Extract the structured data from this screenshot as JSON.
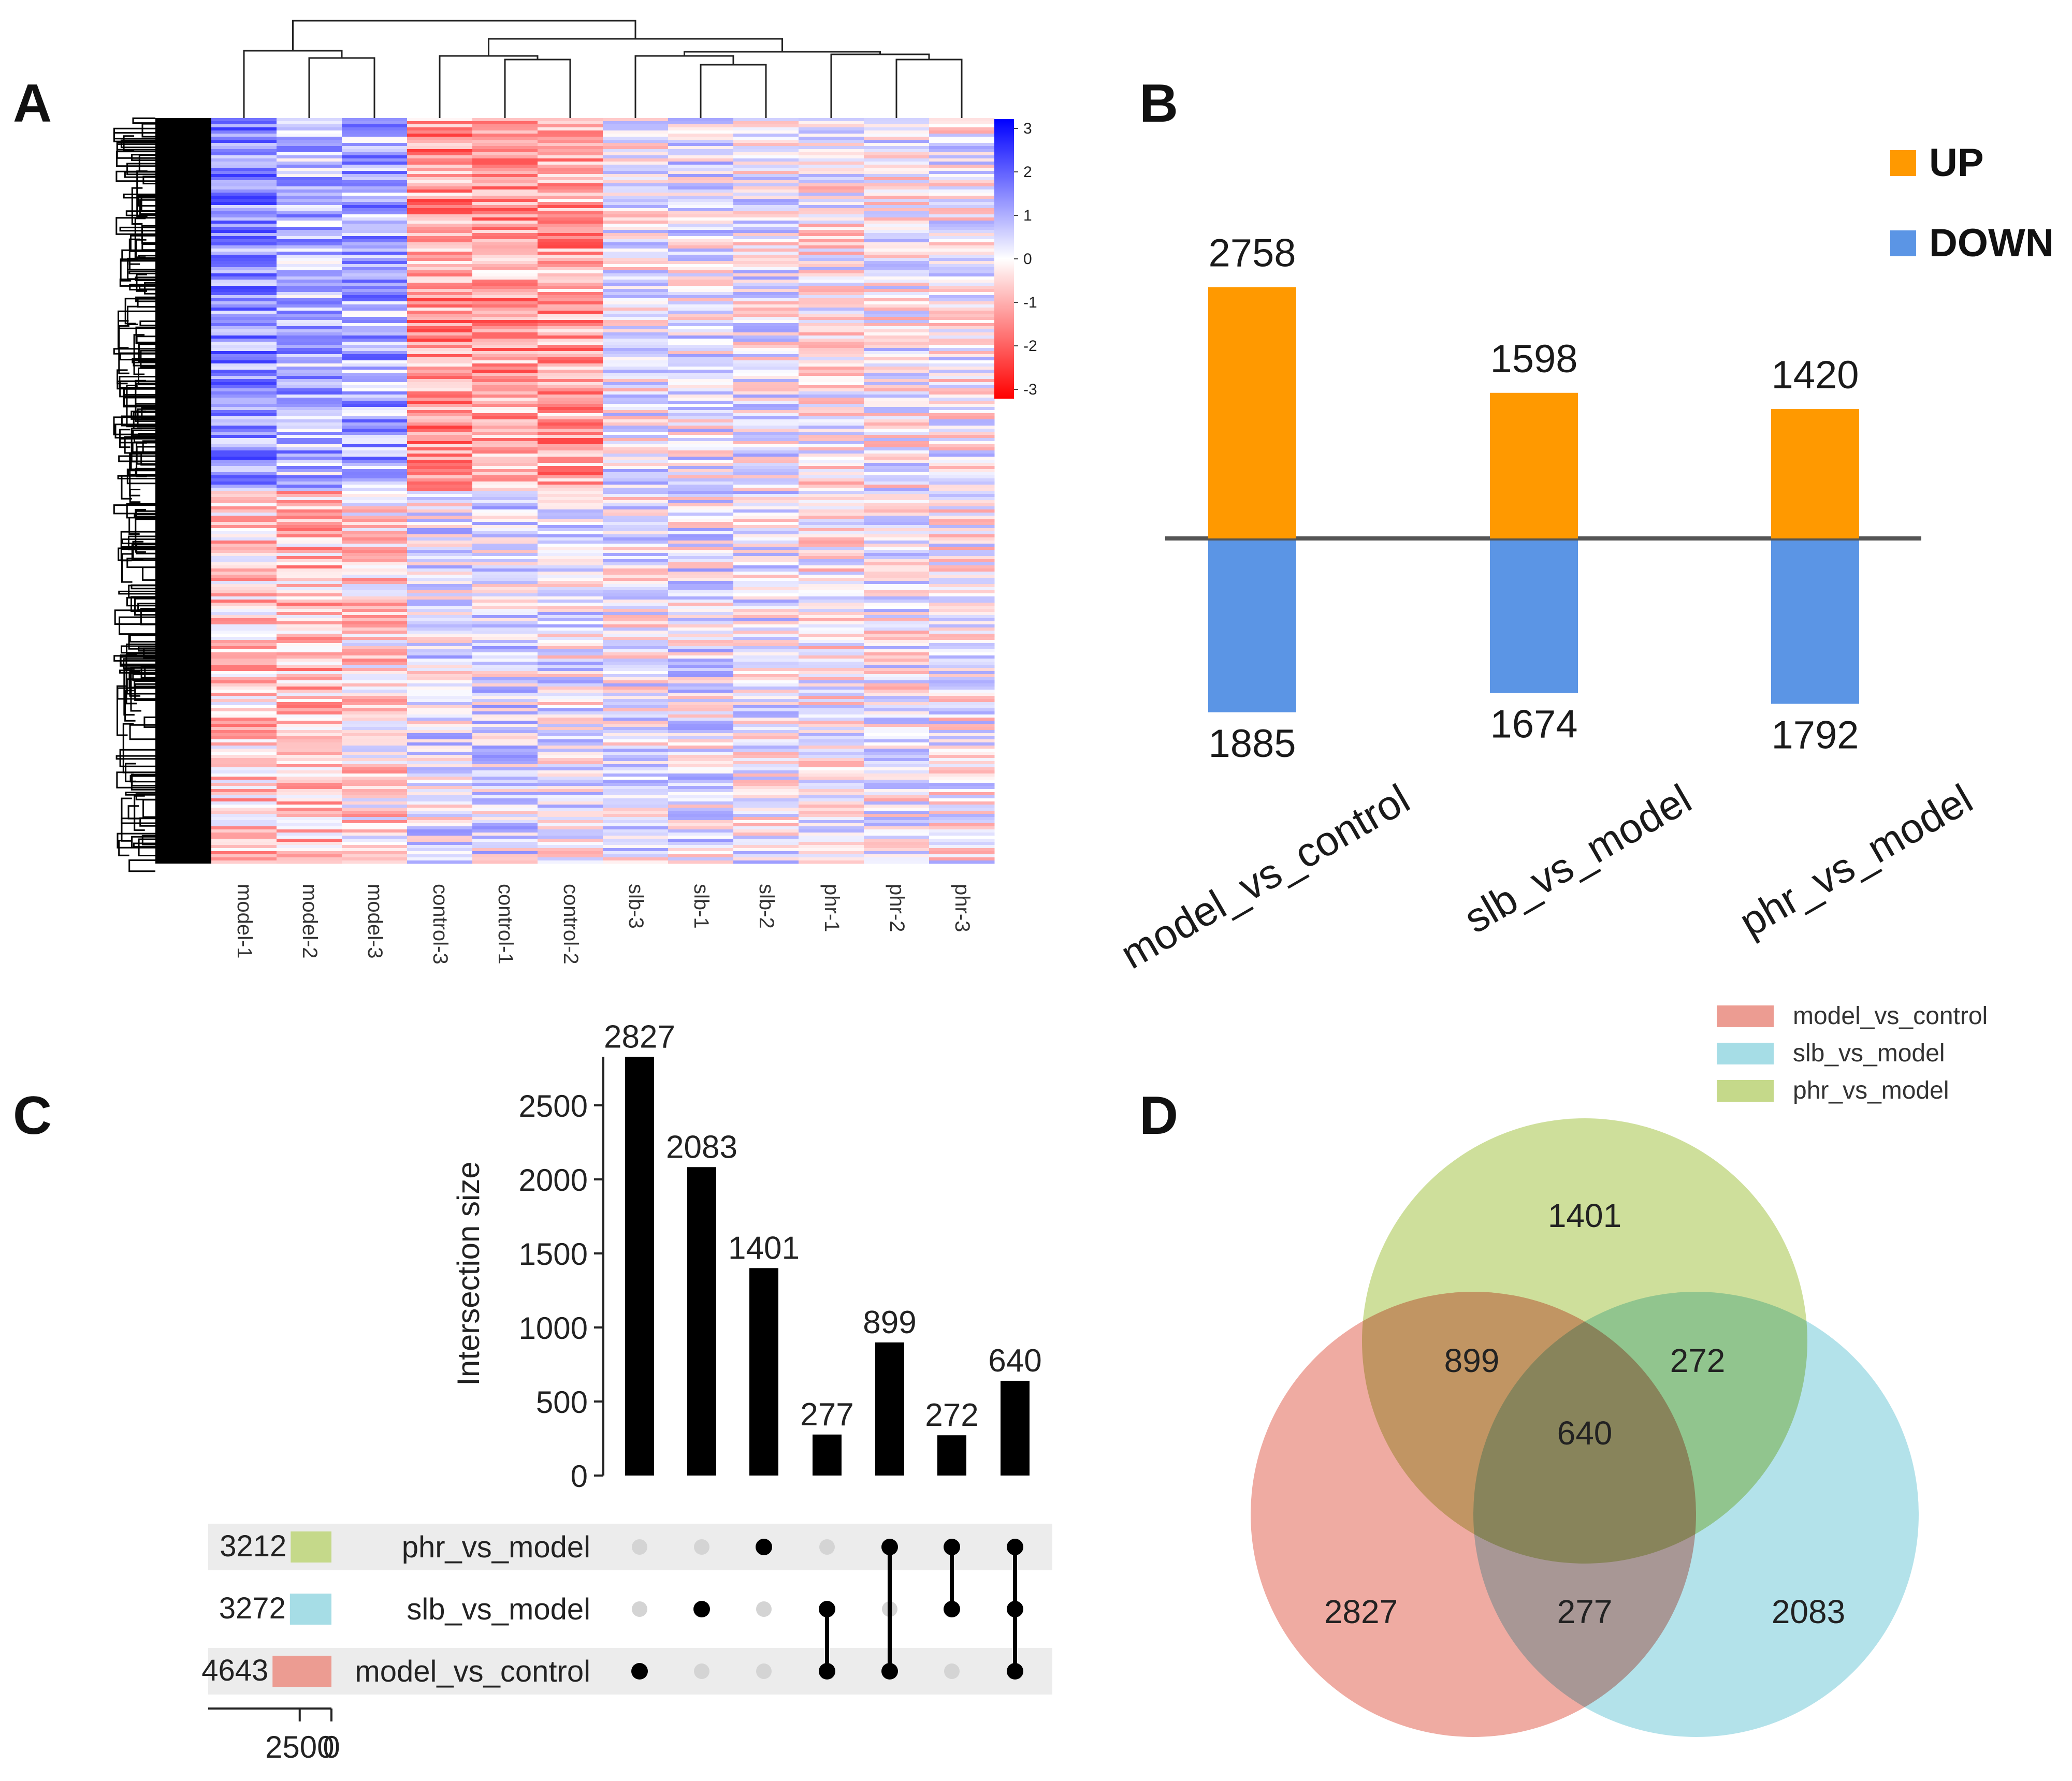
{
  "panels": {
    "a": "A",
    "b": "B",
    "c": "C",
    "d": "D"
  },
  "chart_data": [
    {
      "type": "heatmap",
      "panel": "A",
      "samples": [
        "model-1",
        "model-2",
        "model-3",
        "control-3",
        "control-1",
        "control-2",
        "slb-3",
        "slb-1",
        "slb-2",
        "phr-1",
        "phr-2",
        "phr-3"
      ],
      "colorbar": {
        "ticks": [
          "3",
          "2",
          "1",
          "0",
          "-1",
          "-2",
          "-3"
        ],
        "min": -3,
        "max": 3,
        "low_color": "#ff0000",
        "mid_color": "#ffffff",
        "high_color": "#0000ff"
      },
      "row_dendrogram": true,
      "col_dendrogram": true
    },
    {
      "type": "bar",
      "panel": "B",
      "categories": [
        "model_vs_control",
        "slb_vs_model",
        "phr_vs_model"
      ],
      "series": [
        {
          "name": "UP",
          "color": "#ff9900",
          "values": [
            2758,
            1598,
            1420
          ]
        },
        {
          "name": "DOWN",
          "color": "#5b95e5",
          "values": [
            1885,
            1674,
            1792
          ]
        }
      ],
      "up_labels": [
        "2758",
        "1598",
        "1420"
      ],
      "down_labels": [
        "1885",
        "1674",
        "1792"
      ],
      "legend": [
        "UP",
        "DOWN"
      ],
      "legend_position": "top-right"
    },
    {
      "type": "bar",
      "panel": "C",
      "subtype": "upset",
      "ylabel": "Intersection size",
      "yticks": [
        "0",
        "500",
        "1000",
        "1500",
        "2000",
        "2500"
      ],
      "ylim": [
        0,
        2827
      ],
      "values": [
        2827,
        2083,
        1401,
        277,
        899,
        272,
        640
      ],
      "value_labels": [
        "2827",
        "2083",
        "1401",
        "277",
        "899",
        "272",
        "640"
      ],
      "sets": [
        {
          "name": "phr_vs_model",
          "size": 3212,
          "size_label": "3212",
          "color": "#c5d98a"
        },
        {
          "name": "slb_vs_model",
          "size": 3272,
          "size_label": "3272",
          "color": "#a6dde6"
        },
        {
          "name": "model_vs_control",
          "size": 4643,
          "size_label": "4643",
          "color": "#ec9c92"
        }
      ],
      "membership": [
        [
          2
        ],
        [
          1
        ],
        [
          0
        ],
        [
          1,
          2
        ],
        [
          0,
          2
        ],
        [
          0,
          1
        ],
        [
          0,
          1,
          2
        ]
      ],
      "set_axis_ticks": [
        "2500",
        "0"
      ]
    },
    {
      "type": "venn",
      "panel": "D",
      "legend": [
        {
          "name": "model_vs_control",
          "color": "#ec9c92"
        },
        {
          "name": "slb_vs_model",
          "color": "#a6dde6"
        },
        {
          "name": "phr_vs_model",
          "color": "#c5d98a"
        }
      ],
      "regions": {
        "phr_only": "1401",
        "model_phr": "899",
        "slb_phr": "272",
        "all": "640",
        "model_only": "2827",
        "model_slb": "277",
        "slb_only": "2083"
      }
    }
  ]
}
